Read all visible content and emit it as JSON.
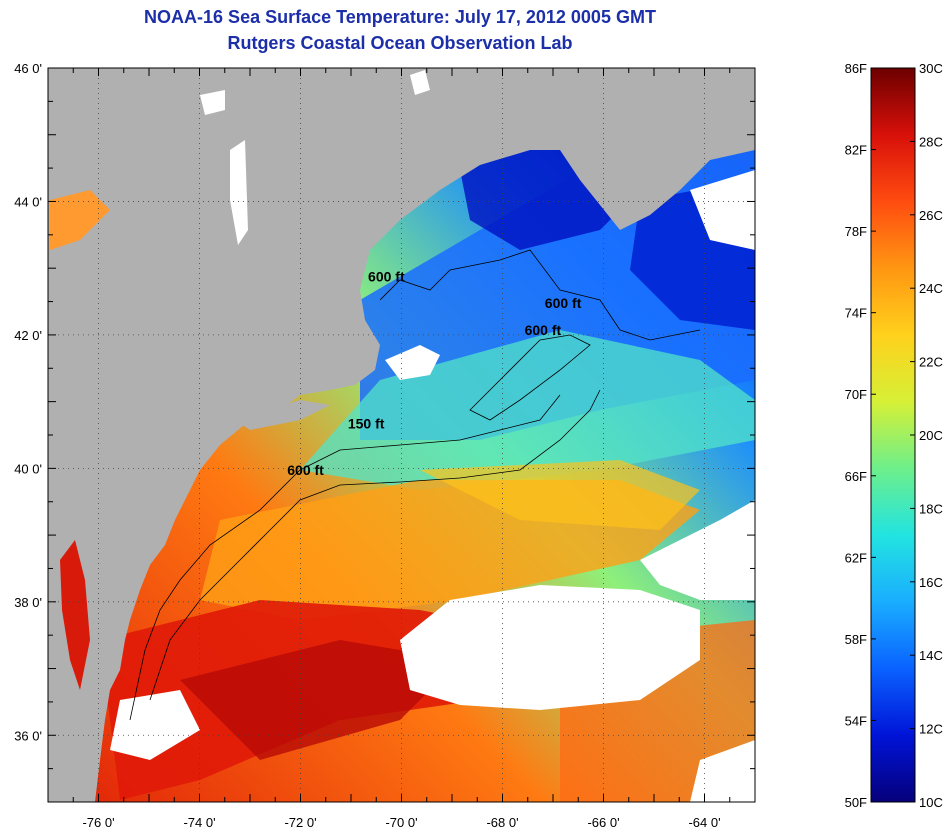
{
  "title_line1": "NOAA-16 Sea Surface Temperature:  July 17, 2012 0005 GMT",
  "title_line2": "Rutgers Coastal Ocean Observation Lab",
  "map": {
    "lat_range": [
      35,
      46
    ],
    "lon_range": [
      -77,
      -63
    ],
    "lat_labels": [
      {
        "value": 46,
        "text": "46 0'"
      },
      {
        "value": 44,
        "text": "44 0'"
      },
      {
        "value": 42,
        "text": "42 0'"
      },
      {
        "value": 40,
        "text": "40 0'"
      },
      {
        "value": 38,
        "text": "38 0'"
      },
      {
        "value": 36,
        "text": "36 0'"
      }
    ],
    "lon_labels": [
      {
        "value": -76,
        "text": "-76 0'"
      },
      {
        "value": -74,
        "text": "-74 0'"
      },
      {
        "value": -72,
        "text": "-72 0'"
      },
      {
        "value": -70,
        "text": "-70 0'"
      },
      {
        "value": -68,
        "text": "-68 0'"
      },
      {
        "value": -66,
        "text": "-66 0'"
      },
      {
        "value": -64,
        "text": "-64 0'"
      }
    ],
    "contour_labels": [
      {
        "text": "600 ft",
        "lon": -71.9,
        "lat": 39.9
      },
      {
        "text": "150 ft",
        "lon": -70.7,
        "lat": 40.6
      },
      {
        "text": "600 ft",
        "lon": -70.3,
        "lat": 42.8
      },
      {
        "text": "600 ft",
        "lon": -66.8,
        "lat": 42.4
      },
      {
        "text": "600 ft",
        "lon": -67.2,
        "lat": 42.0
      }
    ],
    "colors": {
      "land": "#b0b0b0",
      "cloud": "#ffffff",
      "frame": "#000000",
      "grid": "#555555"
    }
  },
  "colorbar": {
    "range_c": [
      10,
      30
    ],
    "celsius_labels": [
      "30C",
      "28C",
      "26C",
      "24C",
      "22C",
      "20C",
      "18C",
      "16C",
      "14C",
      "12C",
      "10C"
    ],
    "fahrenheit_labels": [
      "86F",
      "82F",
      "78F",
      "74F",
      "70F",
      "66F",
      "62F",
      "58F",
      "54F",
      "50F"
    ],
    "fahrenheit_values": [
      86,
      82,
      78,
      74,
      70,
      66,
      62,
      58,
      54,
      50
    ],
    "color_stops": [
      "#06007a",
      "#0014d8",
      "#0a62ff",
      "#1aaeff",
      "#22e4e0",
      "#6eef8a",
      "#d6f036",
      "#ffd11c",
      "#ff9612",
      "#ff4c10",
      "#d8100a",
      "#6c0000"
    ]
  }
}
